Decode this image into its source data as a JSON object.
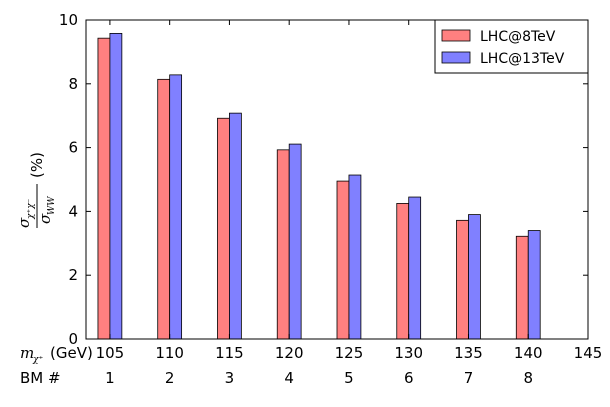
{
  "chart_data": {
    "type": "bar",
    "x_axis_label_main": "m",
    "x_axis_label_sub": "χ⁺",
    "x_axis_label_unit": "(GeV)",
    "bm_row_label": "BM #",
    "xticks": [
      105,
      110,
      115,
      120,
      125,
      130,
      135,
      140,
      145
    ],
    "xlim": [
      103,
      145
    ],
    "ylim": [
      0,
      10
    ],
    "yticks": [
      0,
      2,
      4,
      6,
      8,
      10
    ],
    "ylabel": {
      "num_main": "σ",
      "num_sub": "χ⁺χ⁻",
      "den_main": "σ",
      "den_sub": "WW",
      "unit": "(%)"
    },
    "benchmarks": [
      {
        "bm": "1",
        "mass": 105
      },
      {
        "bm": "2",
        "mass": 110
      },
      {
        "bm": "3",
        "mass": 115
      },
      {
        "bm": "4",
        "mass": 120
      },
      {
        "bm": "5",
        "mass": 125
      },
      {
        "bm": "6",
        "mass": 130
      },
      {
        "bm": "7",
        "mass": 135
      },
      {
        "bm": "8",
        "mass": 140
      }
    ],
    "series": [
      {
        "name": "LHC@8TeV",
        "color": "#ff8080",
        "values": [
          9.43,
          8.14,
          6.92,
          5.93,
          4.95,
          4.25,
          3.72,
          3.22
        ]
      },
      {
        "name": "LHC@13TeV",
        "color": "#8080ff",
        "values": [
          9.58,
          8.28,
          7.08,
          6.11,
          5.14,
          4.45,
          3.9,
          3.4
        ]
      }
    ],
    "legend_position": "top-right",
    "grid": false
  }
}
